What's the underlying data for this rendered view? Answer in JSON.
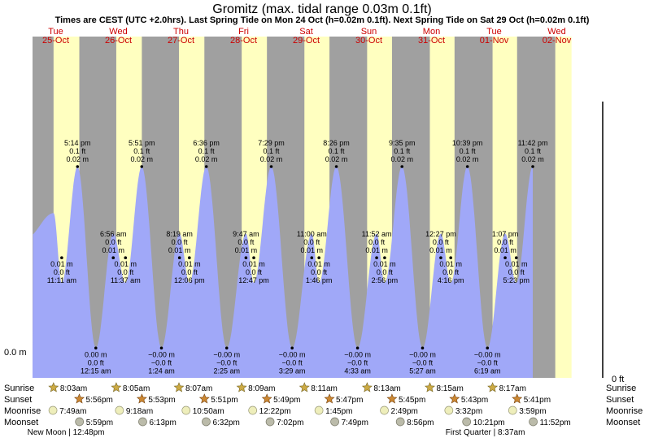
{
  "title": "Gromitz (max. tidal range 0.03m 0.1ft)",
  "subtitle": "Times are CEST (UTC +2.0hrs). Last Spring Tide on Mon 24 Oct (h=0.02m 0.1ft). Next Spring Tide on Sat 29 Oct (h=0.02m 0.1ft)",
  "colors": {
    "night": "#a0a0a0",
    "day": "#ffffc0",
    "water": "#a0a8f8",
    "weekday": "#cc0000",
    "sun": "#ccaa44",
    "moon": "#eeeebb",
    "moonset": "#bbbbaa"
  },
  "y_axis": {
    "left_label": "0.0 m",
    "right_label": "0 ft"
  },
  "row_labels": {
    "sunrise": "Sunrise",
    "sunset": "Sunset",
    "moonrise": "Moonrise",
    "moonset": "Moonset"
  },
  "days": [
    {
      "dow": "Tue",
      "date": "25-Oct"
    },
    {
      "dow": "Wed",
      "date": "26-Oct"
    },
    {
      "dow": "Thu",
      "date": "27-Oct"
    },
    {
      "dow": "Fri",
      "date": "28-Oct"
    },
    {
      "dow": "Sat",
      "date": "29-Oct"
    },
    {
      "dow": "Sun",
      "date": "30-Oct"
    },
    {
      "dow": "Mon",
      "date": "31-Oct"
    },
    {
      "dow": "Tue",
      "date": "01-Nov"
    },
    {
      "dow": "Wed",
      "date": "02-Nov"
    }
  ],
  "chart_data": {
    "type": "area",
    "title": "Gromitz (max. tidal range 0.03m 0.1ft)",
    "x_range": [
      "2022-10-25 00:00",
      "2022-11-02 00:00"
    ],
    "ylabel": "0.0 m",
    "high_tides": [
      {
        "time": "5:14 pm",
        "ft": "0.1 ft",
        "m": "0.02 m",
        "h": 0.02
      },
      {
        "time": "5:51 pm",
        "ft": "0.1 ft",
        "m": "0.02 m",
        "h": 0.02
      },
      {
        "time": "6:36 pm",
        "ft": "0.1 ft",
        "m": "0.02 m",
        "h": 0.02
      },
      {
        "time": "7:29 pm",
        "ft": "0.1 ft",
        "m": "0.02 m",
        "h": 0.02
      },
      {
        "time": "8:26 pm",
        "ft": "0.1 ft",
        "m": "0.02 m",
        "h": 0.02
      },
      {
        "time": "9:35 pm",
        "ft": "0.1 ft",
        "m": "0.02 m",
        "h": 0.02
      },
      {
        "time": "10:39 pm",
        "ft": "0.1 ft",
        "m": "0.02 m",
        "h": 0.02
      },
      {
        "time": "11:42 pm",
        "ft": "0.1 ft",
        "m": "0.02 m",
        "h": 0.02
      }
    ],
    "secondary_highs": [
      {
        "time": "6:56 am",
        "ft": "0.0 ft",
        "m": "0.01 m"
      },
      {
        "time": "8:19 am",
        "ft": "0.0 ft",
        "m": "0.01 m"
      },
      {
        "time": "9:47 am",
        "ft": "0.0 ft",
        "m": "0.01 m"
      },
      {
        "time": "11:00 am",
        "ft": "0.0 ft",
        "m": "0.01 m"
      },
      {
        "time": "11:52 am",
        "ft": "0.0 ft",
        "m": "0.01 m"
      },
      {
        "time": "12:27 pm",
        "ft": "0.0 ft",
        "m": "0.01 m"
      },
      {
        "time": "1:07 pm",
        "ft": "0.0 ft",
        "m": "0.01 m"
      }
    ],
    "midday_lows": [
      {
        "time": "11:11 am",
        "ft": "0.0 ft",
        "m": "0.01 m"
      },
      {
        "time": "11:37 am",
        "ft": "0.0 ft",
        "m": "0.01 m"
      },
      {
        "time": "12:06 pm",
        "ft": "0.0 ft",
        "m": "0.01 m"
      },
      {
        "time": "12:47 pm",
        "ft": "0.0 ft",
        "m": "0.01 m"
      },
      {
        "time": "1:46 pm",
        "ft": "0.0 ft",
        "m": "0.01 m"
      },
      {
        "time": "2:56 pm",
        "ft": "0.0 ft",
        "m": "0.01 m"
      },
      {
        "time": "4:16 pm",
        "ft": "0.0 ft",
        "m": "0.01 m"
      },
      {
        "time": "5:23 pm",
        "ft": "0.0 ft",
        "m": "0.01 m"
      }
    ],
    "low_tides": [
      {
        "time": "12:15 am",
        "ft": "0.0 ft",
        "m": "0.00 m"
      },
      {
        "time": "1:24 am",
        "ft": "−0.0 ft",
        "m": "−0.00 m"
      },
      {
        "time": "2:25 am",
        "ft": "−0.0 ft",
        "m": "−0.00 m"
      },
      {
        "time": "3:29 am",
        "ft": "−0.0 ft",
        "m": "−0.00 m"
      },
      {
        "time": "4:33 am",
        "ft": "−0.0 ft",
        "m": "−0.00 m"
      },
      {
        "time": "5:27 am",
        "ft": "−0.0 ft",
        "m": "−0.00 m"
      },
      {
        "time": "6:19 am",
        "ft": "−0.0 ft",
        "m": "−0.00 m"
      }
    ],
    "sunrise": [
      "8:03am",
      "8:05am",
      "8:07am",
      "8:09am",
      "8:11am",
      "8:13am",
      "8:15am",
      "8:17am"
    ],
    "sunset": [
      "5:56pm",
      "5:53pm",
      "5:51pm",
      "5:49pm",
      "5:47pm",
      "5:45pm",
      "5:43pm",
      "5:41pm"
    ],
    "moonrise": [
      "7:49am",
      "9:18am",
      "10:50am",
      "12:22pm",
      "1:45pm",
      "2:49pm",
      "3:32pm",
      "3:59pm"
    ],
    "moonset": [
      "5:59pm",
      "6:13pm",
      "6:32pm",
      "7:02pm",
      "7:49pm",
      "8:56pm",
      "10:21pm",
      "11:52pm"
    ],
    "phases": [
      {
        "label": "New Moon | 12:48pm"
      },
      {
        "label": "First Quarter | 8:37am"
      }
    ]
  }
}
